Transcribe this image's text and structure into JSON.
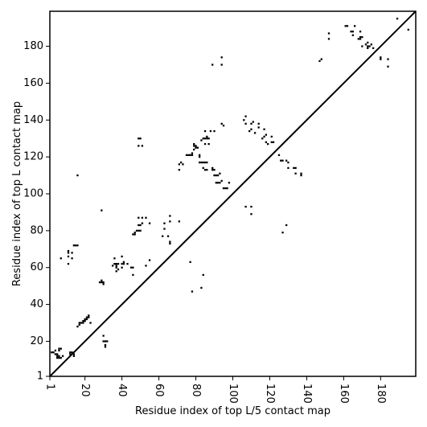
{
  "chart_data": {
    "type": "scatter",
    "title": "",
    "xlabel": "Residue index of top L/5 contact map",
    "ylabel": "Residue index of top L contact map",
    "xlim": [
      1,
      199
    ],
    "ylim": [
      1,
      199
    ],
    "x_ticks": [
      1,
      20,
      40,
      60,
      80,
      100,
      120,
      140,
      160,
      180
    ],
    "y_ticks": [
      1,
      20,
      40,
      60,
      80,
      100,
      120,
      140,
      160,
      180
    ],
    "x_tick_labels": [
      "1",
      "20",
      "40",
      "60",
      "80",
      "100",
      "120",
      "140",
      "160",
      "180"
    ],
    "y_tick_labels": [
      "1",
      "20",
      "40",
      "60",
      "80",
      "100",
      "120",
      "140",
      "160",
      "180"
    ],
    "tick_rotation_x": 270,
    "diagonal_line": true,
    "marker": "square",
    "marker_color": "#000000",
    "grid": false,
    "series": [
      {
        "values": [
          [
            2,
            14
          ],
          [
            3,
            14
          ],
          [
            4,
            13
          ],
          [
            5,
            13
          ],
          [
            5,
            12
          ],
          [
            6,
            12
          ],
          [
            5,
            11
          ],
          [
            6,
            11
          ],
          [
            4,
            15
          ],
          [
            6,
            15
          ],
          [
            6,
            16
          ],
          [
            7,
            16
          ],
          [
            8,
            12
          ],
          [
            7,
            11
          ],
          [
            12,
            14
          ],
          [
            13,
            14
          ],
          [
            12,
            13
          ],
          [
            14,
            13
          ],
          [
            14,
            12
          ],
          [
            16,
            110
          ],
          [
            7,
            65
          ],
          [
            11,
            66
          ],
          [
            11,
            68
          ],
          [
            13,
            68
          ],
          [
            13,
            65
          ],
          [
            11,
            62
          ],
          [
            11,
            69
          ],
          [
            14,
            72
          ],
          [
            15,
            72
          ],
          [
            16,
            72
          ],
          [
            16,
            28
          ],
          [
            17,
            29
          ],
          [
            18,
            30
          ],
          [
            19,
            30
          ],
          [
            20,
            31
          ],
          [
            20,
            32
          ],
          [
            21,
            32
          ],
          [
            21,
            33
          ],
          [
            22,
            33
          ],
          [
            22,
            34
          ],
          [
            17,
            30
          ],
          [
            19,
            31
          ],
          [
            23,
            30
          ],
          [
            28,
            52
          ],
          [
            29,
            53
          ],
          [
            29,
            52
          ],
          [
            30,
            52
          ],
          [
            30,
            51
          ],
          [
            29,
            91
          ],
          [
            30,
            23
          ],
          [
            30,
            20
          ],
          [
            31,
            20
          ],
          [
            32,
            20
          ],
          [
            31,
            18
          ],
          [
            31,
            17
          ],
          [
            35,
            61
          ],
          [
            36,
            62
          ],
          [
            37,
            62
          ],
          [
            37,
            61
          ],
          [
            37,
            60
          ],
          [
            38,
            62
          ],
          [
            38,
            59
          ],
          [
            37,
            58
          ],
          [
            36,
            65
          ],
          [
            40,
            60
          ],
          [
            40,
            62
          ],
          [
            41,
            62
          ],
          [
            41,
            63
          ],
          [
            40,
            66
          ],
          [
            43,
            62
          ],
          [
            45,
            60
          ],
          [
            46,
            60
          ],
          [
            46,
            56
          ],
          [
            46,
            78
          ],
          [
            47,
            78
          ],
          [
            47,
            79
          ],
          [
            48,
            80
          ],
          [
            49,
            80
          ],
          [
            50,
            80
          ],
          [
            49,
            83
          ],
          [
            50,
            83
          ],
          [
            51,
            84
          ],
          [
            49,
            87
          ],
          [
            51,
            87
          ],
          [
            53,
            87
          ],
          [
            53,
            61
          ],
          [
            55,
            64
          ],
          [
            55,
            84
          ],
          [
            49,
            126
          ],
          [
            51,
            126
          ],
          [
            49,
            130
          ],
          [
            50,
            130
          ],
          [
            62,
            77
          ],
          [
            63,
            81
          ],
          [
            63,
            84
          ],
          [
            66,
            85
          ],
          [
            66,
            88
          ],
          [
            65,
            77
          ],
          [
            66,
            74
          ],
          [
            66,
            73
          ],
          [
            71,
            85
          ],
          [
            71,
            113
          ],
          [
            71,
            116
          ],
          [
            72,
            117
          ],
          [
            73,
            116
          ],
          [
            75,
            121
          ],
          [
            76,
            121
          ],
          [
            77,
            121
          ],
          [
            78,
            121
          ],
          [
            78,
            122
          ],
          [
            79,
            124
          ],
          [
            79,
            126
          ],
          [
            80,
            126
          ],
          [
            80,
            125
          ],
          [
            81,
            125
          ],
          [
            79,
            127
          ],
          [
            82,
            120
          ],
          [
            82,
            121
          ],
          [
            82,
            117
          ],
          [
            83,
            129
          ],
          [
            84,
            130
          ],
          [
            85,
            130
          ],
          [
            86,
            130
          ],
          [
            86,
            131
          ],
          [
            87,
            130
          ],
          [
            85,
            127
          ],
          [
            87,
            127
          ],
          [
            85,
            134
          ],
          [
            88,
            134
          ],
          [
            90,
            134
          ],
          [
            83,
            117
          ],
          [
            84,
            117
          ],
          [
            85,
            117
          ],
          [
            86,
            117
          ],
          [
            84,
            114
          ],
          [
            85,
            113
          ],
          [
            86,
            113
          ],
          [
            89,
            113
          ],
          [
            89,
            114
          ],
          [
            90,
            113
          ],
          [
            90,
            110
          ],
          [
            91,
            110
          ],
          [
            92,
            110
          ],
          [
            93,
            111
          ],
          [
            91,
            106
          ],
          [
            92,
            106
          ],
          [
            93,
            106
          ],
          [
            94,
            107
          ],
          [
            95,
            103
          ],
          [
            96,
            103
          ],
          [
            97,
            103
          ],
          [
            98,
            106
          ],
          [
            94,
            138
          ],
          [
            95,
            137
          ],
          [
            77,
            63
          ],
          [
            78,
            47
          ],
          [
            83,
            49
          ],
          [
            84,
            56
          ],
          [
            89,
            170
          ],
          [
            94,
            170
          ],
          [
            94,
            174
          ],
          [
            106,
            140
          ],
          [
            107,
            142
          ],
          [
            107,
            138
          ],
          [
            109,
            134
          ],
          [
            110,
            135
          ],
          [
            110,
            138
          ],
          [
            111,
            139
          ],
          [
            112,
            133
          ],
          [
            114,
            136
          ],
          [
            114,
            138
          ],
          [
            116,
            130
          ],
          [
            117,
            131
          ],
          [
            117,
            135
          ],
          [
            118,
            132
          ],
          [
            118,
            128
          ],
          [
            119,
            127
          ],
          [
            121,
            128
          ],
          [
            122,
            128
          ],
          [
            121,
            131
          ],
          [
            107,
            93
          ],
          [
            110,
            93
          ],
          [
            110,
            89
          ],
          [
            125,
            121
          ],
          [
            126,
            118
          ],
          [
            127,
            118
          ],
          [
            129,
            118
          ],
          [
            130,
            117
          ],
          [
            130,
            114
          ],
          [
            133,
            114
          ],
          [
            134,
            114
          ],
          [
            134,
            111
          ],
          [
            137,
            110
          ],
          [
            137,
            111
          ],
          [
            127,
            79
          ],
          [
            129,
            83
          ],
          [
            147,
            172
          ],
          [
            148,
            173
          ],
          [
            152,
            184
          ],
          [
            152,
            187
          ],
          [
            161,
            191
          ],
          [
            162,
            191
          ],
          [
            164,
            188
          ],
          [
            165,
            188
          ],
          [
            165,
            186
          ],
          [
            166,
            191
          ],
          [
            168,
            184
          ],
          [
            169,
            184
          ],
          [
            169,
            185
          ],
          [
            170,
            185
          ],
          [
            169,
            188
          ],
          [
            170,
            180
          ],
          [
            172,
            181
          ],
          [
            173,
            180
          ],
          [
            174,
            180
          ],
          [
            173,
            182
          ],
          [
            175,
            181
          ],
          [
            173,
            179
          ],
          [
            176,
            179
          ],
          [
            180,
            173
          ],
          [
            180,
            174
          ],
          [
            184,
            169
          ],
          [
            184,
            173
          ],
          [
            189,
            195
          ],
          [
            195,
            189
          ]
        ]
      }
    ]
  }
}
